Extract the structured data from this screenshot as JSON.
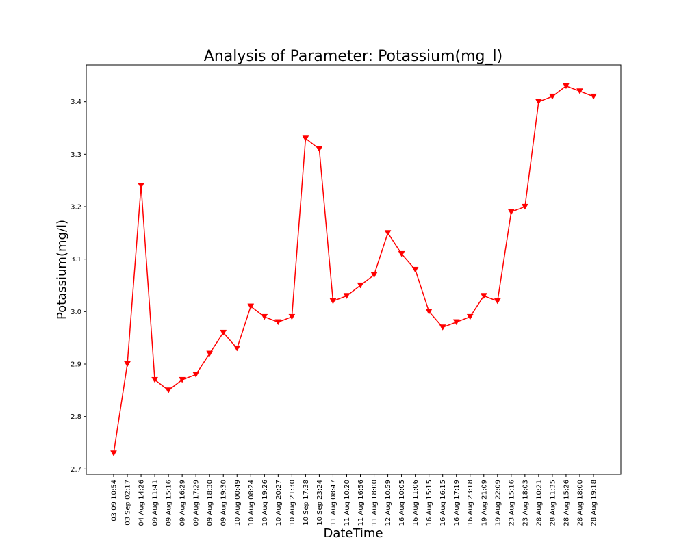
{
  "chart_data": {
    "type": "line",
    "title": "Analysis of Parameter: Potassium(mg_l)",
    "xlabel": "DateTime",
    "ylabel": "Potassium(mg/l)",
    "ylim": [
      2.69,
      3.47
    ],
    "yticks": [
      2.7,
      2.8,
      2.9,
      3.0,
      3.1,
      3.2,
      3.3,
      3.4
    ],
    "ytick_labels": [
      "2.7",
      "2.8",
      "2.9",
      "3.0",
      "3.1",
      "3.2",
      "3.3",
      "3.4"
    ],
    "grid": false,
    "legend": "none",
    "marker": "triangle-down",
    "color": "#ff0000",
    "categories": [
      "03 09 10:54",
      "03 Sep 02:17",
      "04 Aug 14:26",
      "09 Aug 11:41",
      "09 Aug 15:16",
      "09 Aug 16:29",
      "09 Aug 17:29",
      "09 Aug 18:30",
      "09 Aug 19:30",
      "10 Aug 00:49",
      "10 Aug 08:24",
      "10 Aug 19:26",
      "10 Aug 20:27",
      "10 Aug 21:30",
      "10 Sep 17:38",
      "10 Sep 23:24",
      "11 Aug 08:47",
      "11 Aug 10:20",
      "11 Aug 16:56",
      "11 Aug 18:00",
      "12 Aug 10:59",
      "16 Aug 10:05",
      "16 Aug 11:06",
      "16 Aug 15:15",
      "16 Aug 16:15",
      "16 Aug 17:19",
      "16 Aug 23:18",
      "19 Aug 21:09",
      "19 Aug 22:09",
      "23 Aug 15:16",
      "23 Aug 18:03",
      "28 Aug 10:21",
      "28 Aug 11:35",
      "28 Aug 15:26",
      "28 Aug 18:00",
      "28 Aug 19:18"
    ],
    "values": [
      2.73,
      2.9,
      3.24,
      2.87,
      2.85,
      2.87,
      2.88,
      2.92,
      2.96,
      2.93,
      3.01,
      2.99,
      2.98,
      2.99,
      3.33,
      3.31,
      3.02,
      3.03,
      3.05,
      3.07,
      3.15,
      3.11,
      3.08,
      3.0,
      2.97,
      2.98,
      2.99,
      3.03,
      3.02,
      3.19,
      3.2,
      3.4,
      3.41,
      3.43,
      3.42,
      3.41
    ]
  }
}
